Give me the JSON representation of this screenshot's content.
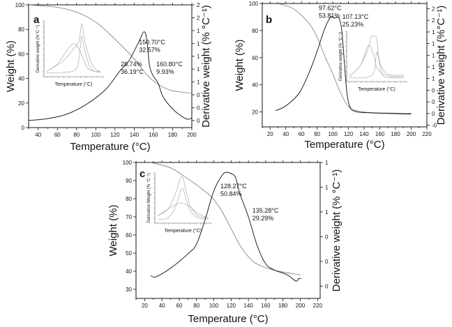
{
  "chart_data": [
    {
      "panel_label": "a",
      "type": "line",
      "xlabel": "Temperature (°C)",
      "ylabel": "Weight (%)",
      "y2label": "Derivative weight (% °C⁻¹)",
      "xlim": [
        30,
        200
      ],
      "ylim": [
        0,
        100
      ],
      "y2lim": [
        0.09,
        2.0
      ],
      "xticks": [
        40,
        60,
        80,
        100,
        120,
        140,
        160,
        180,
        200
      ],
      "yticks": [
        0,
        20,
        40,
        60,
        80,
        100
      ],
      "y2ticks": [
        2.0,
        1.8,
        1.6,
        1.4,
        1.2,
        1.0,
        0.8,
        0.6,
        0.4,
        0.2
      ],
      "y2ticklabels": [
        "2",
        "2",
        "1",
        "1",
        "1",
        "1",
        "1",
        "0",
        "0",
        "0"
      ],
      "series": [
        {
          "axis": "left",
          "color": "#777777",
          "x": [
            30,
            60,
            80,
            100,
            120,
            140,
            150,
            160,
            170,
            180,
            200
          ],
          "y": [
            100,
            98,
            94,
            86,
            72,
            56,
            46,
            38,
            33,
            30,
            28
          ]
        },
        {
          "axis": "right",
          "color": "#222222",
          "x": [
            30,
            50,
            70,
            90,
            110,
            125,
            130,
            135,
            145,
            150,
            153,
            156,
            160,
            165,
            170,
            180,
            190,
            196,
            200
          ],
          "y": [
            0.2,
            0.23,
            0.3,
            0.45,
            0.68,
            0.97,
            1.05,
            1.14,
            1.43,
            1.58,
            1.47,
            1.05,
            0.89,
            0.78,
            0.57,
            0.38,
            0.26,
            0.22,
            0.24
          ]
        }
      ],
      "annotations": [
        {
          "lines": [
            "150.70°C",
            "32.57%"
          ],
          "x": 145,
          "y": 68
        },
        {
          "lines": [
            "160.80°C",
            "9.93%"
          ],
          "x": 163,
          "y": 50
        },
        {
          "lines": [
            "28.74%",
            "36.19°C"
          ],
          "x": 126,
          "y": 50
        }
      ],
      "inset": {
        "xlabel": "Temperature (°C)",
        "ylabel": "Derivative weight (%°C⁻¹)",
        "series": [
          {
            "x": [
              0,
              0.3,
              0.5,
              0.6,
              0.65,
              0.7,
              0.8,
              0.9,
              1
            ],
            "y": [
              0.05,
              0.25,
              0.5,
              0.65,
              1.0,
              0.7,
              0.3,
              0.1,
              0.05
            ]
          },
          {
            "x": [
              0,
              0.3,
              0.55,
              0.62,
              0.65,
              0.7,
              0.8,
              0.9,
              1
            ],
            "y": [
              0.02,
              0.03,
              0.1,
              0.5,
              0.75,
              0.5,
              0.15,
              0.05,
              0.03
            ]
          },
          {
            "x": [
              0,
              0.2,
              0.4,
              0.5,
              0.6,
              0.7,
              0.8,
              1
            ],
            "y": [
              0.05,
              0.2,
              0.5,
              0.6,
              0.5,
              0.25,
              0.08,
              0.04
            ]
          }
        ]
      }
    },
    {
      "panel_label": "b",
      "type": "line",
      "xlabel": "Temperature (°C)",
      "ylabel": "Weight  (%)",
      "y2label": "Derivative weight (%°C⁻¹)",
      "xlim": [
        10,
        220
      ],
      "ylim": [
        9,
        100
      ],
      "y2lim": [
        -0.03,
        2.09
      ],
      "xticks": [
        20,
        40,
        60,
        80,
        100,
        120,
        140,
        160,
        180,
        200,
        220
      ],
      "yticks": [
        20,
        40,
        60,
        80,
        100
      ],
      "y2ticks": [
        2.0,
        1.8,
        1.6,
        1.4,
        1.2,
        1.0,
        0.8,
        0.6,
        0.4,
        0.2,
        0.0
      ],
      "y2ticklabels": [
        "2",
        "2",
        "1",
        "1",
        "1",
        "1",
        "1",
        "0",
        "0",
        "0",
        "-0"
      ],
      "series": [
        {
          "axis": "left",
          "color": "#777777",
          "x": [
            30,
            50,
            70,
            80,
            90,
            100,
            110,
            120,
            130,
            150,
            200
          ],
          "y": [
            100,
            96,
            85,
            75,
            61,
            48,
            34,
            24,
            21,
            19.5,
            19
          ]
        },
        {
          "axis": "right",
          "color": "#222222",
          "x": [
            27,
            40,
            57,
            70,
            80,
            90,
            97.6,
            102,
            107,
            110,
            112,
            115,
            118,
            122,
            130,
            150,
            200
          ],
          "y": [
            0.25,
            0.33,
            0.55,
            0.91,
            1.27,
            1.67,
            1.86,
            1.84,
            1.85,
            1.75,
            1.55,
            1.03,
            0.55,
            0.31,
            0.23,
            0.21,
            0.19
          ]
        }
      ],
      "annotations": [
        {
          "lines": [
            "97.62°C",
            "53.81%"
          ],
          "x": 82,
          "y": 95
        },
        {
          "lines": [
            "107.13°C",
            "25.23%"
          ],
          "x": 112,
          "y": 88.7
        }
      ],
      "inset": {
        "xlabel": "Temperature (°C)",
        "ylabel": "Derivative weight (% °C⁻¹)",
        "series": [
          {
            "x": [
              0,
              0.2,
              0.35,
              0.4,
              0.45,
              0.5,
              0.55,
              0.65,
              0.8,
              1
            ],
            "y": [
              0.05,
              0.3,
              0.7,
              0.95,
              0.95,
              0.9,
              0.4,
              0.15,
              0.08,
              0.08
            ]
          },
          {
            "x": [
              0,
              0.2,
              0.35,
              0.45,
              0.5,
              0.6,
              0.8,
              1
            ],
            "y": [
              0.05,
              0.3,
              0.75,
              0.5,
              0.25,
              0.12,
              0.05,
              0.05
            ]
          },
          {
            "x": [
              0,
              0.3,
              0.45,
              0.5,
              0.55,
              0.6,
              0.7,
              1
            ],
            "y": [
              0.02,
              0.03,
              0.15,
              0.6,
              0.35,
              0.1,
              0.03,
              0.02
            ]
          }
        ]
      }
    },
    {
      "panel_label": "c",
      "type": "line",
      "xlabel": "Temperature (°C)",
      "ylabel": "Weight (%)",
      "y2label": "Derivative weight (% °C⁻¹)",
      "xlim": [
        10,
        223
      ],
      "ylim": [
        25,
        100
      ],
      "y2lim": [
        -0.1,
        1.0
      ],
      "xticks": [
        20,
        40,
        60,
        80,
        100,
        120,
        140,
        160,
        180,
        200,
        220
      ],
      "yticks": [
        30,
        40,
        50,
        60,
        70,
        80,
        90,
        100
      ],
      "y2ticks": [
        1.0,
        0.8,
        0.6,
        0.4,
        0.2,
        0.0
      ],
      "y2ticklabels": [
        "1",
        "1",
        "1",
        "0",
        "0",
        "0"
      ],
      "series": [
        {
          "axis": "left",
          "color": "#777777",
          "x": [
            27,
            50,
            70,
            90,
            100,
            110,
            120,
            130,
            140,
            150,
            170,
            200
          ],
          "y": [
            100,
            97,
            91,
            84,
            79.5,
            72.5,
            63.5,
            54.5,
            48,
            44,
            40.5,
            38
          ]
        },
        {
          "axis": "right",
          "color": "#222222",
          "x": [
            27,
            33,
            50,
            70,
            80,
            90,
            100,
            110,
            115,
            120,
            125,
            130,
            140,
            150,
            160,
            170,
            185,
            195,
            198,
            201
          ],
          "y": [
            0.085,
            0.075,
            0.145,
            0.26,
            0.34,
            0.54,
            0.77,
            0.9,
            0.92,
            0.91,
            0.88,
            0.75,
            0.56,
            0.33,
            0.18,
            0.13,
            0.09,
            0.04,
            0.06,
            0.06
          ]
        }
      ],
      "annotations": [
        {
          "lines": [
            "128.27°C",
            "50.84%"
          ],
          "x": 107.6,
          "y": 85.8
        },
        {
          "lines": [
            "135.28°C",
            "29.29%"
          ],
          "x": 144.5,
          "y": 72.3
        }
      ],
      "inset": {
        "xlabel": "Temperature (°C)",
        "ylabel": "Derivative Weight (% °C⁻¹)",
        "series": [
          {
            "x": [
              0,
              0.2,
              0.35,
              0.45,
              0.5,
              0.55,
              0.65,
              0.8,
              1
            ],
            "y": [
              0.1,
              0.25,
              0.6,
              0.95,
              0.95,
              0.7,
              0.3,
              0.1,
              0.05
            ]
          },
          {
            "x": [
              0,
              0.2,
              0.35,
              0.45,
              0.5,
              0.55,
              0.65,
              0.8,
              1
            ],
            "y": [
              0.02,
              0.05,
              0.3,
              0.65,
              0.7,
              0.5,
              0.2,
              0.05,
              0.02
            ]
          },
          {
            "x": [
              0,
              0.2,
              0.4,
              0.5,
              0.6,
              0.8,
              1
            ],
            "y": [
              0.1,
              0.25,
              0.38,
              0.38,
              0.33,
              0.15,
              0.05
            ]
          }
        ]
      }
    }
  ]
}
